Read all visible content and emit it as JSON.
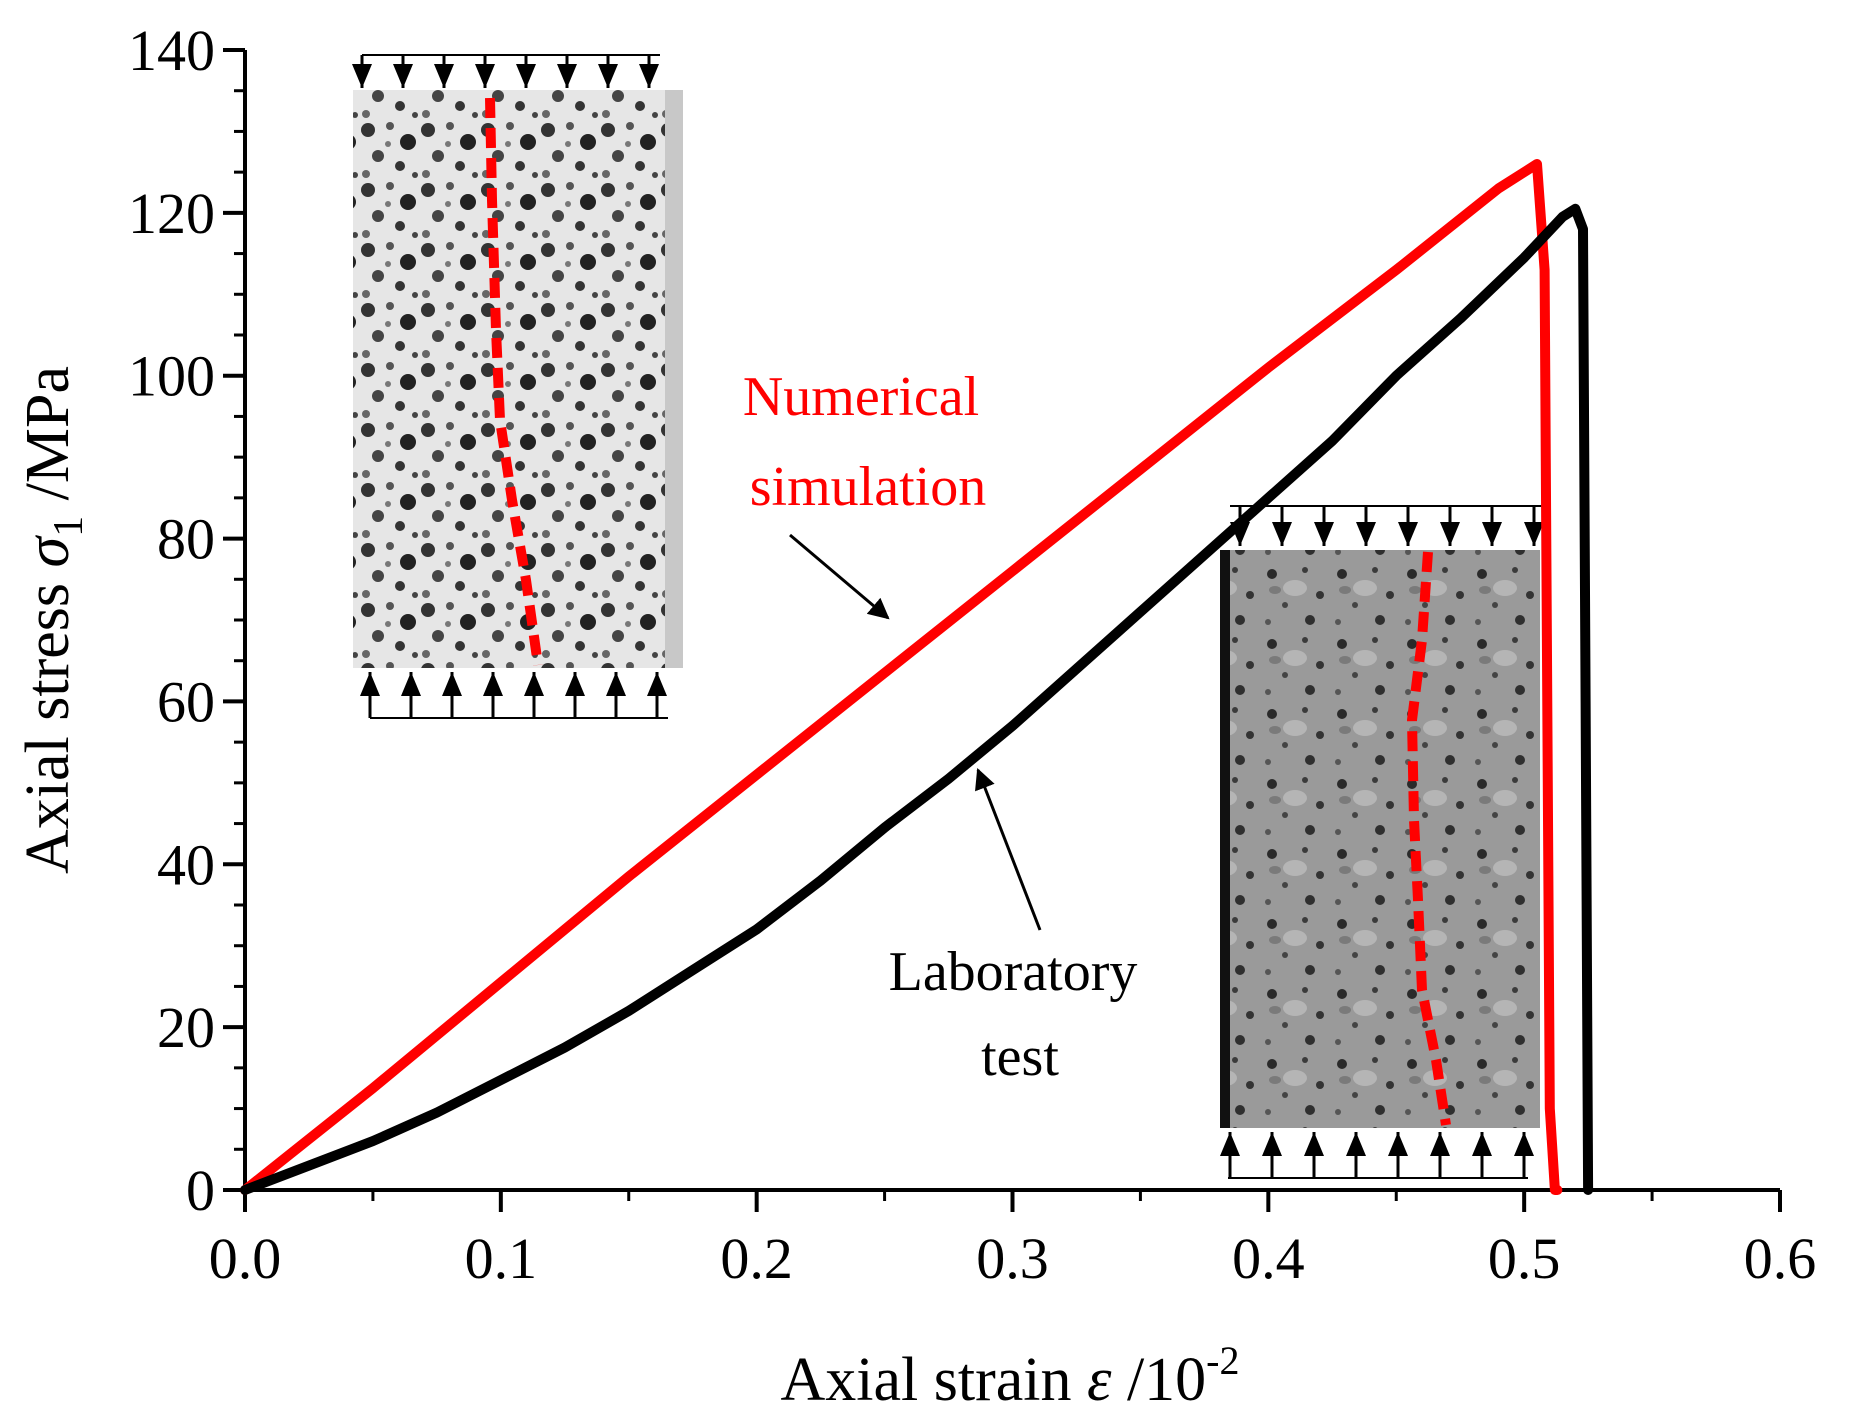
{
  "chart_data": {
    "type": "line",
    "title": "",
    "xlabel": "Axial strain ε /10⁻²",
    "xlabel_parts": {
      "main": "Axial strain ",
      "symbol": "ε",
      "unit": " /10",
      "exponent": "-2"
    },
    "ylabel": "Axial stress σ₁ /MPa",
    "ylabel_parts": {
      "main": "Axial stress ",
      "symbol": "σ",
      "subscript": "1",
      "unit": " /MPa"
    },
    "xlim": [
      0,
      0.6
    ],
    "ylim": [
      0,
      140
    ],
    "xticks": [
      0.0,
      0.1,
      0.2,
      0.3,
      0.4,
      0.5,
      0.6
    ],
    "xtick_labels": [
      "0.0",
      "0.1",
      "0.2",
      "0.3",
      "0.4",
      "0.5",
      "0.6"
    ],
    "yticks": [
      0,
      20,
      40,
      60,
      80,
      100,
      120,
      140
    ],
    "ytick_labels": [
      "0",
      "20",
      "40",
      "60",
      "80",
      "100",
      "120",
      "140"
    ],
    "grid": false,
    "series": [
      {
        "name": "Numerical simulation",
        "color": "#ff0000",
        "x": [
          0,
          0.05,
          0.1,
          0.15,
          0.2,
          0.25,
          0.3,
          0.35,
          0.4,
          0.45,
          0.49,
          0.505,
          0.508,
          0.51,
          0.512,
          0.513
        ],
        "y": [
          0,
          12.5,
          25.5,
          38.5,
          51,
          63.5,
          76,
          88.5,
          101,
          113,
          123,
          126,
          113,
          10,
          0,
          0
        ]
      },
      {
        "name": "Laboratory test",
        "color": "#000000",
        "x": [
          0,
          0.025,
          0.05,
          0.075,
          0.1,
          0.125,
          0.15,
          0.175,
          0.2,
          0.225,
          0.25,
          0.275,
          0.3,
          0.325,
          0.35,
          0.375,
          0.4,
          0.425,
          0.45,
          0.475,
          0.5,
          0.515,
          0.52,
          0.523,
          0.524,
          0.525
        ],
        "y": [
          0,
          3,
          6,
          9.5,
          13.5,
          17.5,
          22,
          27,
          32,
          38,
          44.5,
          50.5,
          57,
          64,
          71,
          78,
          85,
          92,
          100,
          107,
          114.5,
          119.5,
          120.5,
          118,
          60,
          0
        ]
      }
    ],
    "annotations": [
      {
        "text_lines": [
          "Numerical",
          "simulation"
        ],
        "color": "#ff0000",
        "points_to": "Numerical simulation",
        "arrow_target": [
          0.25,
          70
        ]
      },
      {
        "text_lines": [
          "Laboratory",
          "test"
        ],
        "color": "#000000",
        "points_to": "Laboratory test",
        "arrow_target": [
          0.286,
          52
        ]
      }
    ],
    "insets": [
      {
        "name": "numerical-specimen",
        "description_icon": "simulated-specimen-image",
        "crack_color": "#ff0000"
      },
      {
        "name": "laboratory-specimen",
        "description_icon": "photo-specimen-image",
        "crack_color": "#ff0000"
      }
    ]
  }
}
